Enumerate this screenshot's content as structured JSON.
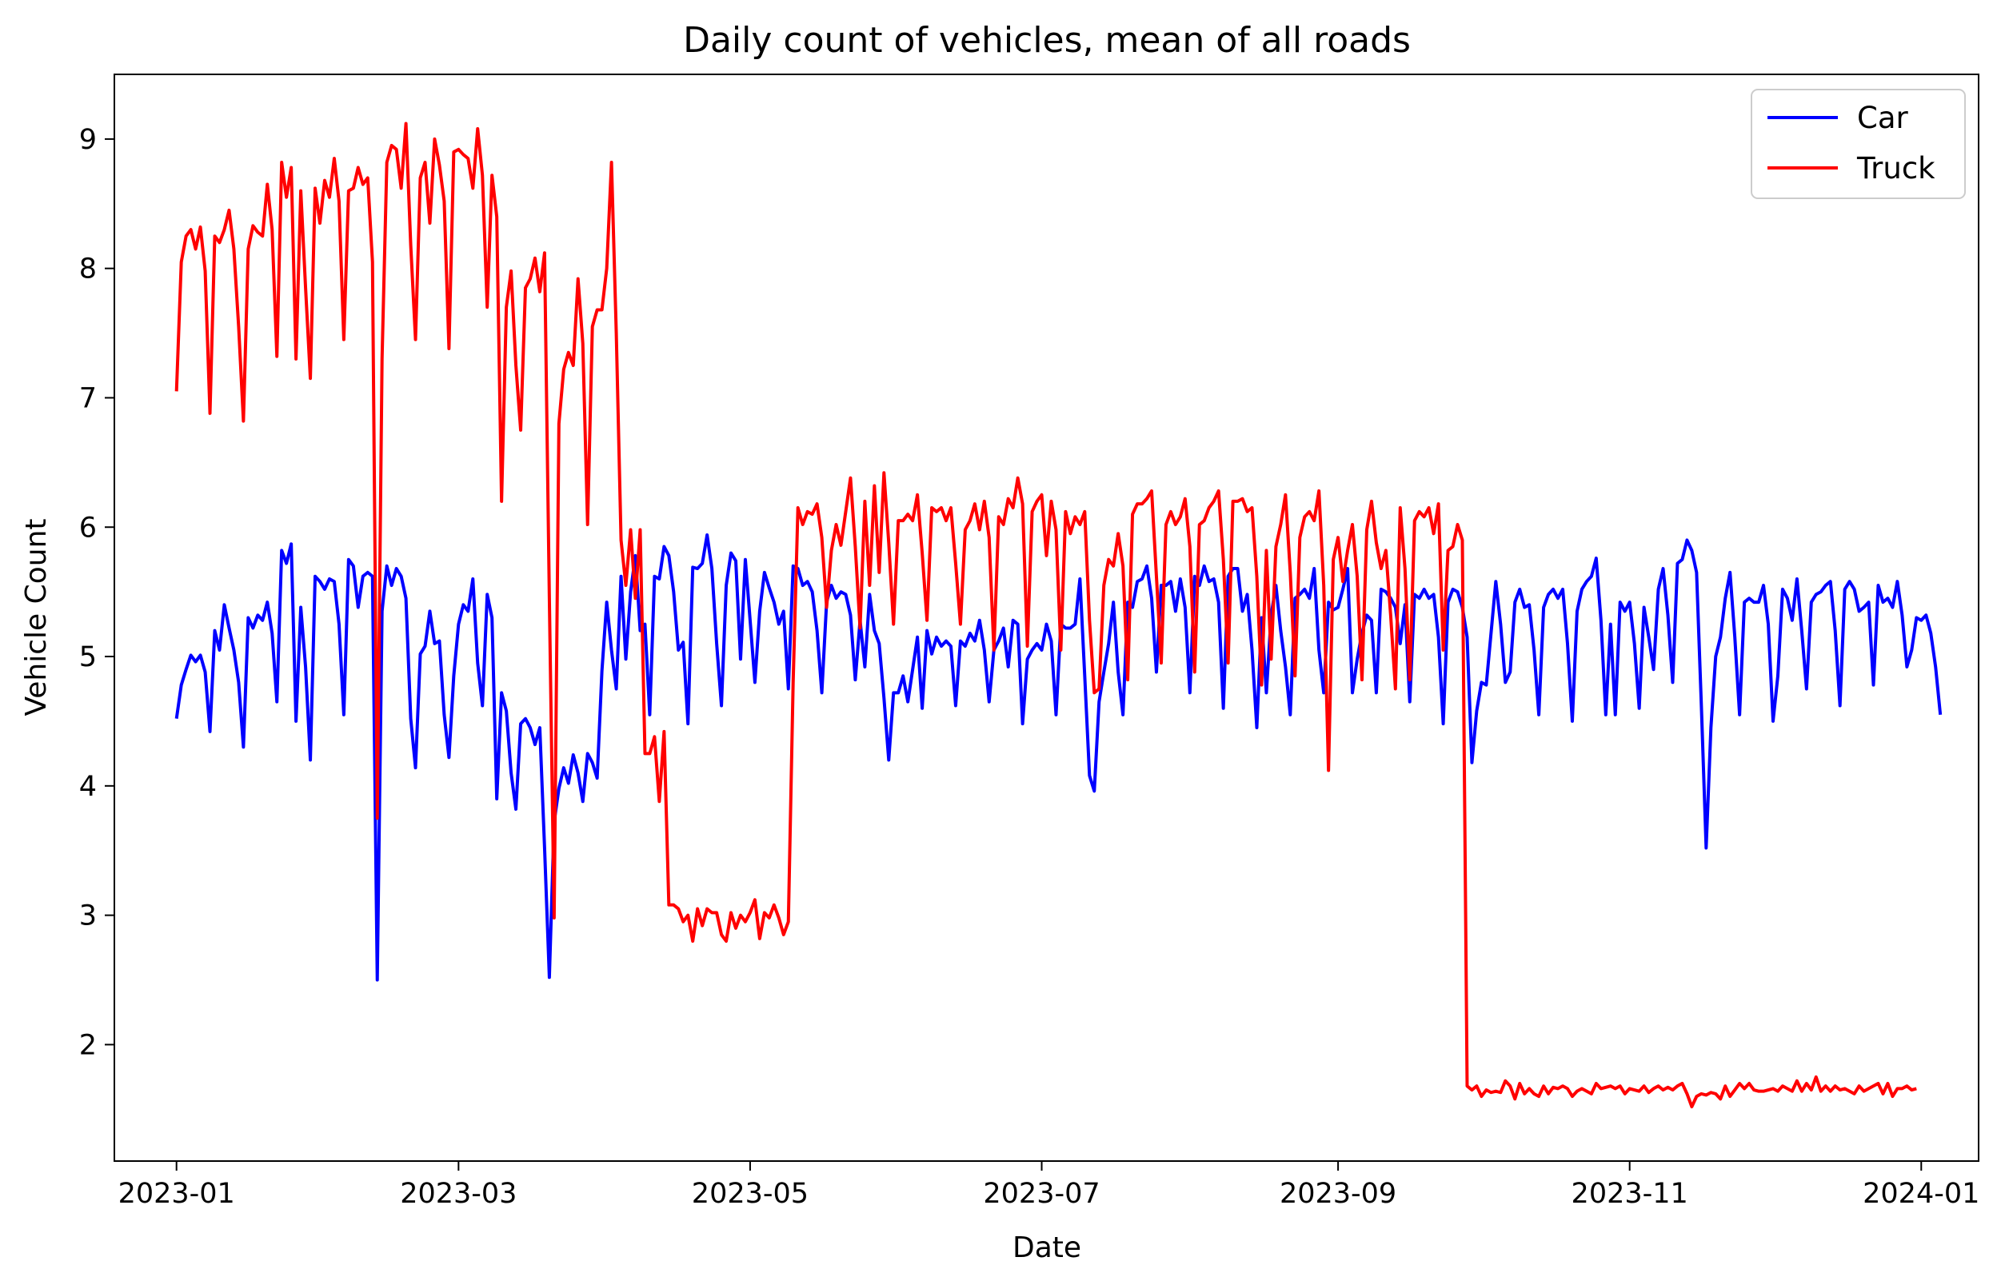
{
  "chart_data": {
    "type": "line",
    "title": "Daily count of vehicles, mean of all roads",
    "xlabel": "Date",
    "ylabel": "Vehicle Count",
    "x_start": "2023-01-01",
    "x_end": "2023-12-31",
    "xlim": [
      "2022-12-19",
      "2024-01-13"
    ],
    "ylim": [
      1.1,
      9.5
    ],
    "x_tick_labels": [
      "2023-01",
      "2023-03",
      "2023-05",
      "2023-07",
      "2023-09",
      "2023-11",
      "2024-01"
    ],
    "x_tick_dates": [
      "2023-01-01",
      "2023-03-01",
      "2023-05-01",
      "2023-07-01",
      "2023-09-01",
      "2023-11-01",
      "2024-01-01"
    ],
    "y_ticks": [
      2,
      3,
      4,
      5,
      6,
      7,
      8,
      9
    ],
    "y_tick_labels": [
      "2",
      "3",
      "4",
      "5",
      "6",
      "7",
      "8",
      "9"
    ],
    "grid": false,
    "legend_position": "top-right",
    "series": [
      {
        "name": "Car",
        "color": "#0000ff",
        "values": [
          4.52,
          4.78,
          4.9,
          5.01,
          4.96,
          5.01,
          4.88,
          4.42,
          5.2,
          5.05,
          5.4,
          5.22,
          5.05,
          4.8,
          4.3,
          5.3,
          5.22,
          5.32,
          5.28,
          5.42,
          5.18,
          4.65,
          5.82,
          5.72,
          5.87,
          4.5,
          5.38,
          4.92,
          4.2,
          5.62,
          5.58,
          5.52,
          5.6,
          5.58,
          5.25,
          4.55,
          5.75,
          5.7,
          5.38,
          5.62,
          5.65,
          5.62,
          2.5,
          5.35,
          5.7,
          5.55,
          5.68,
          5.62,
          5.45,
          4.52,
          4.14,
          5.02,
          5.08,
          5.35,
          5.1,
          5.12,
          4.55,
          4.22,
          4.85,
          5.25,
          5.4,
          5.35,
          5.6,
          4.95,
          4.62,
          5.48,
          5.3,
          3.9,
          4.72,
          4.58,
          4.1,
          3.82,
          4.48,
          4.52,
          4.45,
          4.32,
          4.45,
          3.52,
          2.52,
          3.72,
          3.98,
          4.14,
          4.02,
          4.24,
          4.1,
          3.88,
          4.25,
          4.18,
          4.06,
          4.89,
          5.42,
          5.05,
          4.75,
          5.62,
          4.98,
          5.5,
          5.78,
          5.2,
          5.25,
          4.55,
          5.62,
          5.6,
          5.85,
          5.78,
          5.5,
          5.05,
          5.11,
          4.48,
          5.69,
          5.68,
          5.72,
          5.94,
          5.68,
          5.1,
          4.62,
          5.55,
          5.8,
          5.74,
          4.98,
          5.75,
          5.28,
          4.8,
          5.35,
          5.65,
          5.53,
          5.42,
          5.25,
          5.35,
          4.75,
          5.7,
          5.68,
          5.55,
          5.58,
          5.5,
          5.2,
          4.72,
          5.42,
          5.55,
          5.45,
          5.5,
          5.48,
          5.32,
          4.82,
          5.28,
          4.92,
          5.48,
          5.2,
          5.1,
          4.68,
          4.2,
          4.72,
          4.72,
          4.85,
          4.65,
          4.9,
          5.15,
          4.6,
          5.2,
          5.02,
          5.15,
          5.08,
          5.12,
          5.08,
          4.62,
          5.12,
          5.08,
          5.18,
          5.12,
          5.28,
          5.05,
          4.65,
          5.05,
          5.12,
          5.22,
          4.92,
          5.28,
          5.25,
          4.48,
          4.98,
          5.05,
          5.1,
          5.05,
          5.25,
          5.12,
          4.55,
          5.25,
          5.22,
          5.22,
          5.25,
          5.6,
          4.85,
          4.08,
          3.96,
          4.65,
          4.88,
          5.1,
          5.42,
          4.88,
          4.55,
          5.42,
          5.38,
          5.58,
          5.6,
          5.7,
          5.45,
          4.88,
          5.55,
          5.55,
          5.58,
          5.35,
          5.6,
          5.38,
          4.72,
          5.62,
          5.55,
          5.7,
          5.58,
          5.6,
          5.42,
          4.6,
          5.62,
          5.68,
          5.68,
          5.35,
          5.48,
          5.05,
          4.45,
          5.3,
          4.72,
          5.32,
          5.55,
          5.2,
          4.92,
          4.55,
          5.45,
          5.48,
          5.52,
          5.45,
          5.68,
          5.05,
          4.72,
          5.42,
          5.36,
          5.38,
          5.52,
          5.68,
          4.72,
          4.98,
          5.18,
          5.32,
          5.28,
          4.72,
          5.52,
          5.5,
          5.45,
          5.38,
          5.1,
          5.4,
          4.65,
          5.48,
          5.45,
          5.52,
          5.45,
          5.48,
          5.15,
          4.48,
          5.42,
          5.52,
          5.5,
          5.38,
          5.15,
          4.18,
          4.58,
          4.8,
          4.78,
          5.18,
          5.58,
          5.25,
          4.8,
          4.88,
          5.42,
          5.52,
          5.38,
          5.4,
          5.05,
          4.55,
          5.38,
          5.48,
          5.52,
          5.45,
          5.52,
          5.1,
          4.5,
          5.35,
          5.52,
          5.58,
          5.62,
          5.76,
          5.28,
          4.55,
          5.25,
          4.55,
          5.42,
          5.35,
          5.42,
          5.1,
          4.6,
          5.38,
          5.15,
          4.9,
          5.52,
          5.68,
          5.32,
          4.8,
          5.72,
          5.75,
          5.9,
          5.82,
          5.65,
          4.62,
          3.52,
          4.45,
          5.0,
          5.15,
          5.45,
          5.65,
          5.15,
          4.55,
          5.42,
          5.45,
          5.42,
          5.42,
          5.55,
          5.25,
          4.5,
          4.85,
          5.52,
          5.45,
          5.28,
          5.6,
          5.2,
          4.75,
          5.42,
          5.48,
          5.5,
          5.55,
          5.58,
          5.2,
          4.62,
          5.52,
          5.58,
          5.52,
          5.35,
          5.38,
          5.42,
          4.78,
          5.55,
          5.42,
          5.45,
          5.38,
          5.58,
          5.32,
          4.92,
          5.05,
          5.3,
          5.28,
          5.32,
          5.18,
          4.92,
          4.55
        ]
      },
      {
        "name": "Truck",
        "color": "#ff0000",
        "values": [
          7.05,
          8.05,
          8.25,
          8.3,
          8.15,
          8.32,
          7.98,
          6.88,
          8.25,
          8.2,
          8.3,
          8.45,
          8.15,
          7.55,
          6.82,
          8.15,
          8.33,
          8.28,
          8.25,
          8.65,
          8.3,
          7.32,
          8.82,
          8.55,
          8.78,
          7.3,
          8.6,
          7.85,
          7.15,
          8.62,
          8.35,
          8.68,
          8.55,
          8.85,
          8.52,
          7.45,
          8.6,
          8.62,
          8.78,
          8.65,
          8.7,
          8.05,
          3.75,
          7.3,
          8.82,
          8.95,
          8.92,
          8.62,
          9.12,
          8.18,
          7.45,
          8.7,
          8.82,
          8.35,
          9.0,
          8.8,
          8.52,
          7.38,
          8.9,
          8.92,
          8.88,
          8.85,
          8.62,
          9.08,
          8.72,
          7.7,
          8.72,
          8.4,
          6.2,
          7.7,
          7.98,
          7.25,
          6.75,
          7.85,
          7.92,
          8.08,
          7.82,
          8.12,
          5.45,
          2.98,
          6.8,
          7.22,
          7.35,
          7.25,
          7.92,
          7.42,
          6.02,
          7.55,
          7.68,
          7.68,
          8.0,
          8.82,
          7.5,
          5.9,
          5.55,
          5.98,
          5.45,
          5.98,
          4.25,
          4.25,
          4.38,
          3.88,
          4.42,
          3.08,
          3.08,
          3.05,
          2.95,
          3.0,
          2.8,
          3.05,
          2.92,
          3.05,
          3.02,
          3.02,
          2.85,
          2.8,
          3.02,
          2.9,
          3.0,
          2.95,
          3.02,
          3.12,
          2.82,
          3.02,
          2.98,
          3.08,
          2.98,
          2.85,
          2.95,
          4.8,
          6.15,
          6.02,
          6.12,
          6.1,
          6.18,
          5.92,
          5.38,
          5.82,
          6.02,
          5.86,
          6.12,
          6.38,
          5.85,
          5.22,
          6.2,
          5.55,
          6.32,
          5.65,
          6.42,
          5.88,
          5.25,
          6.05,
          6.05,
          6.1,
          6.05,
          6.25,
          5.8,
          5.28,
          6.15,
          6.12,
          6.15,
          6.05,
          6.15,
          5.72,
          5.25,
          5.98,
          6.05,
          6.18,
          5.98,
          6.2,
          5.92,
          5.05,
          6.08,
          6.02,
          6.22,
          6.15,
          6.38,
          6.18,
          5.08,
          6.12,
          6.2,
          6.25,
          5.78,
          6.2,
          5.98,
          5.05,
          6.12,
          5.95,
          6.08,
          6.02,
          6.12,
          5.28,
          4.72,
          4.75,
          5.55,
          5.75,
          5.7,
          5.95,
          5.7,
          4.82,
          6.1,
          6.18,
          6.18,
          6.22,
          6.28,
          5.62,
          4.95,
          6.02,
          6.12,
          6.02,
          6.08,
          6.22,
          5.85,
          4.88,
          6.02,
          6.05,
          6.15,
          6.2,
          6.28,
          5.75,
          4.95,
          6.2,
          6.2,
          6.22,
          6.12,
          6.15,
          5.62,
          4.78,
          5.82,
          4.98,
          5.85,
          6.02,
          6.25,
          5.65,
          4.85,
          5.92,
          6.08,
          6.12,
          6.05,
          6.28,
          5.55,
          4.12,
          5.75,
          5.92,
          5.58,
          5.82,
          6.02,
          5.62,
          4.82,
          5.98,
          6.2,
          5.88,
          5.68,
          5.82,
          5.32,
          4.75,
          6.15,
          5.68,
          4.82,
          6.05,
          6.12,
          6.08,
          6.15,
          5.95,
          6.18,
          5.05,
          5.82,
          5.85,
          6.02,
          5.9,
          1.68,
          1.65,
          1.68,
          1.6,
          1.65,
          1.63,
          1.64,
          1.63,
          1.72,
          1.68,
          1.58,
          1.7,
          1.62,
          1.66,
          1.62,
          1.6,
          1.68,
          1.62,
          1.67,
          1.66,
          1.68,
          1.66,
          1.6,
          1.64,
          1.66,
          1.64,
          1.62,
          1.7,
          1.66,
          1.67,
          1.68,
          1.66,
          1.68,
          1.62,
          1.66,
          1.65,
          1.64,
          1.68,
          1.63,
          1.66,
          1.68,
          1.65,
          1.67,
          1.65,
          1.68,
          1.7,
          1.62,
          1.52,
          1.6,
          1.62,
          1.61,
          1.63,
          1.62,
          1.58,
          1.68,
          1.6,
          1.65,
          1.7,
          1.66,
          1.7,
          1.65,
          1.64,
          1.64,
          1.65,
          1.66,
          1.64,
          1.68,
          1.66,
          1.64,
          1.72,
          1.64,
          1.7,
          1.65,
          1.75,
          1.64,
          1.68,
          1.64,
          1.68,
          1.65,
          1.66,
          1.64,
          1.62,
          1.68,
          1.64,
          1.66,
          1.68,
          1.7,
          1.62,
          1.7,
          1.6,
          1.66,
          1.66,
          1.68,
          1.65,
          1.66
        ]
      }
    ]
  }
}
